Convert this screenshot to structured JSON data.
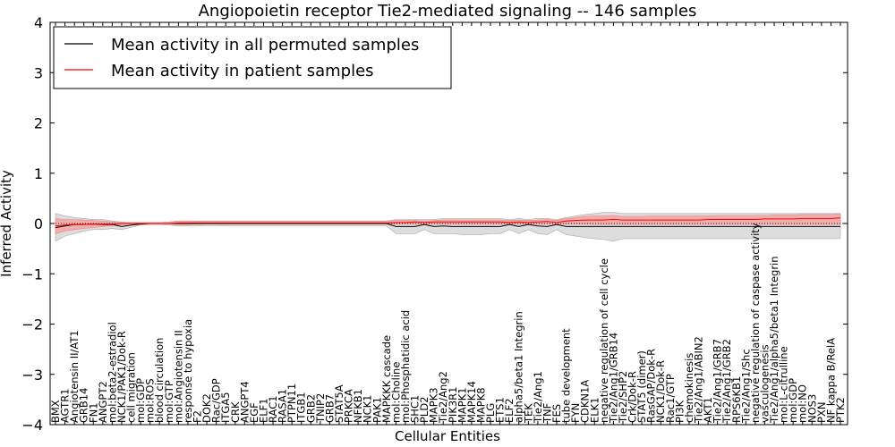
{
  "chart_data": {
    "type": "line",
    "title": "Angiopoietin receptor Tie2-mediated signaling -- 146 samples",
    "xlabel": "Cellular Entities",
    "ylabel": "Inferred Activity",
    "ylim": [
      -4,
      4
    ],
    "yticks": [
      -4,
      -3,
      -2,
      -1,
      0,
      1,
      2,
      3,
      4
    ],
    "grid": false,
    "legend_position": "top-left",
    "colors": {
      "permuted": "#000000",
      "patient": "#ff0000",
      "permuted_band": "#d9d9d9",
      "patient_band": "#f5a3a3",
      "axes": "#000000"
    },
    "categories": [
      "BMX",
      "AGTR1",
      "Angiotensin II/AT1",
      "GRB14",
      "FN1",
      "ANGPT2",
      "mol:beta2-estradiol",
      "NCK1/PAK1/Dok-R",
      "cell migration",
      "mol:GDP",
      "mol:ROS",
      "blood circulation",
      "mol:GTP",
      "mol:Angiotensin II",
      "response to hypoxia",
      "F2",
      "DOK2",
      "Rac/GDP",
      "ITGA5",
      "CRK",
      "ANGPT4",
      "EGF",
      "ELF1",
      "RAC1",
      "RASA1",
      "PTPN11",
      "ITGB1",
      "GRB2",
      "TNIP2",
      "GRB7",
      "STAT5A",
      "PRKCA",
      "NFKB1",
      "NCK1",
      "PAK1",
      "MAPKKK cascade",
      "mol:Choline",
      "mol:Phosphatidic acid",
      "SHC1",
      "PLD2",
      "MAPK3",
      "Tie2/Ang2",
      "PIK3R1",
      "MAPK1",
      "MAPK14",
      "MAPK8",
      "PLG",
      "ETS1",
      "ELF2",
      "alpha5/beta1 Integrin",
      "TEK",
      "Tie2/Ang1",
      "TNF",
      "FES",
      "tube development",
      "FYN",
      "CDKN1A",
      "ELK1",
      "negative regulation of cell cycle",
      "Tie2/Ang1/GRB14",
      "Tie2/SHP2",
      "Crk/Dok-R",
      "STAT5 (dimer)",
      "RasGAP/Dok-R",
      "NCK1/Dok-R",
      "Rac1/GTP",
      "PI3K",
      "chemokinesis",
      "Tie2/Ang1/ABIN2",
      "AKT1",
      "Tie2/Ang1/GRB7",
      "Tie2/Ang1/GRB2",
      "RPS6KB1",
      "Tie2/Ang1/Shc",
      "negative regulation of caspase activity",
      "vasculogenesis",
      "Tie2/Ang1/alpha5/beta1 Integrin",
      "mol:L-citrulline",
      "mol:GDP",
      "mol:NO",
      "NOS3",
      "PXN",
      "NF kappa B/RelA",
      "PTK2"
    ],
    "series": [
      {
        "name": "Mean activity in all permuted samples",
        "values": [
          -0.08,
          -0.05,
          -0.02,
          -0.02,
          -0.01,
          -0.02,
          -0.02,
          -0.06,
          -0.03,
          -0.01,
          0,
          0,
          0,
          0,
          0,
          0,
          0,
          0,
          0,
          0,
          0,
          0,
          0,
          0,
          0,
          0,
          0,
          0,
          0,
          0,
          0,
          0,
          0,
          0,
          0,
          0,
          -0.06,
          -0.06,
          -0.06,
          -0.02,
          -0.06,
          -0.05,
          -0.06,
          -0.06,
          -0.06,
          -0.06,
          -0.06,
          -0.06,
          -0.02,
          -0.06,
          -0.02,
          -0.05,
          -0.06,
          -0.02,
          -0.06,
          -0.06,
          -0.06,
          -0.06,
          -0.06,
          -0.06,
          -0.06,
          -0.06,
          -0.06,
          -0.06,
          -0.06,
          -0.06,
          -0.06,
          -0.06,
          -0.06,
          -0.06,
          -0.06,
          -0.06,
          -0.06,
          -0.06,
          -0.06,
          -0.06,
          -0.06,
          -0.06,
          -0.06,
          -0.06,
          -0.06,
          -0.06,
          -0.06,
          -0.06
        ],
        "band_low": [
          -0.35,
          -0.25,
          -0.2,
          -0.15,
          -0.12,
          -0.12,
          -0.1,
          -0.12,
          -0.08,
          -0.03,
          -0.02,
          -0.02,
          -0.03,
          -0.05,
          -0.05,
          -0.05,
          -0.04,
          -0.04,
          -0.05,
          -0.05,
          -0.05,
          -0.05,
          -0.05,
          -0.05,
          -0.05,
          -0.05,
          -0.05,
          -0.05,
          -0.05,
          -0.05,
          -0.05,
          -0.05,
          -0.05,
          -0.05,
          -0.05,
          -0.05,
          -0.2,
          -0.2,
          -0.2,
          -0.12,
          -0.2,
          -0.2,
          -0.2,
          -0.22,
          -0.22,
          -0.22,
          -0.2,
          -0.2,
          -0.12,
          -0.2,
          -0.12,
          -0.2,
          -0.22,
          -0.12,
          -0.22,
          -0.25,
          -0.28,
          -0.3,
          -0.32,
          -0.35,
          -0.3,
          -0.3,
          -0.3,
          -0.3,
          -0.3,
          -0.3,
          -0.3,
          -0.3,
          -0.3,
          -0.3,
          -0.3,
          -0.3,
          -0.3,
          -0.3,
          -0.3,
          -0.3,
          -0.3,
          -0.3,
          -0.3,
          -0.3,
          -0.3,
          -0.3,
          -0.3,
          -0.3
        ],
        "band_high": [
          0.2,
          0.15,
          0.12,
          0.1,
          0.08,
          0.08,
          0.05,
          0.03,
          0.02,
          0.02,
          0.02,
          0.02,
          0.03,
          0.05,
          0.05,
          0.05,
          0.05,
          0.05,
          0.05,
          0.05,
          0.05,
          0.05,
          0.05,
          0.05,
          0.05,
          0.05,
          0.05,
          0.05,
          0.05,
          0.05,
          0.05,
          0.05,
          0.05,
          0.05,
          0.05,
          0.05,
          0.08,
          0.08,
          0.08,
          0.08,
          0.08,
          0.1,
          0.1,
          0.1,
          0.1,
          0.1,
          0.1,
          0.1,
          0.08,
          0.1,
          0.08,
          0.1,
          0.1,
          0.08,
          0.12,
          0.15,
          0.18,
          0.2,
          0.22,
          0.22,
          0.2,
          0.2,
          0.2,
          0.2,
          0.2,
          0.2,
          0.2,
          0.2,
          0.2,
          0.2,
          0.2,
          0.2,
          0.2,
          0.2,
          0.2,
          0.2,
          0.2,
          0.2,
          0.2,
          0.2,
          0.2,
          0.2,
          0.2,
          0.2
        ]
      },
      {
        "name": "Mean activity in patient samples",
        "values": [
          -0.05,
          -0.03,
          -0.02,
          -0.02,
          -0.01,
          -0.01,
          -0.01,
          0,
          0,
          0,
          0,
          0,
          0,
          0.01,
          0.01,
          0.01,
          0.01,
          0.01,
          0.01,
          0.01,
          0.01,
          0.01,
          0.01,
          0.01,
          0.01,
          0.01,
          0.01,
          0.01,
          0.01,
          0.01,
          0.01,
          0.01,
          0.01,
          0.01,
          0.01,
          0.01,
          0.02,
          0.02,
          0.03,
          0.02,
          0.03,
          0.03,
          0.03,
          0.03,
          0.03,
          0.03,
          0.03,
          0.03,
          0.02,
          0.03,
          0.02,
          0.03,
          0.04,
          0.02,
          0.05,
          0.06,
          0.07,
          0.07,
          0.07,
          0.08,
          0.07,
          0.07,
          0.07,
          0.07,
          0.07,
          0.07,
          0.07,
          0.07,
          0.07,
          0.08,
          0.08,
          0.08,
          0.08,
          0.08,
          0.08,
          0.09,
          0.09,
          0.09,
          0.09,
          0.1,
          0.1,
          0.1,
          0.1,
          0.11
        ],
        "band_low": [
          -0.2,
          -0.15,
          -0.12,
          -0.1,
          -0.08,
          -0.06,
          -0.04,
          -0.02,
          -0.01,
          -0.01,
          -0.01,
          -0.01,
          -0.01,
          -0.02,
          -0.02,
          -0.01,
          -0.01,
          -0.01,
          -0.01,
          -0.01,
          -0.01,
          -0.01,
          -0.01,
          -0.01,
          -0.01,
          -0.01,
          -0.01,
          -0.01,
          -0.01,
          -0.01,
          -0.01,
          -0.01,
          -0.01,
          -0.01,
          -0.01,
          -0.01,
          -0.01,
          -0.01,
          -0.01,
          -0.01,
          -0.01,
          -0.01,
          -0.01,
          -0.01,
          -0.01,
          -0.01,
          -0.01,
          -0.01,
          -0.01,
          -0.01,
          -0.01,
          -0.01,
          -0.01,
          -0.01,
          -0.01,
          -0.01,
          -0.01,
          -0.02,
          -0.02,
          -0.02,
          -0.02,
          -0.02,
          -0.02,
          -0.02,
          -0.02,
          -0.02,
          -0.02,
          -0.02,
          -0.02,
          -0.02,
          -0.02,
          -0.02,
          -0.02,
          -0.02,
          -0.02,
          -0.02,
          -0.02,
          -0.02,
          -0.02,
          -0.02,
          -0.02,
          -0.02,
          -0.02,
          -0.02
        ],
        "band_high": [
          0.1,
          0.08,
          0.08,
          0.07,
          0.06,
          0.05,
          0.03,
          0.02,
          0.02,
          0.02,
          0.02,
          0.02,
          0.03,
          0.05,
          0.05,
          0.04,
          0.04,
          0.04,
          0.04,
          0.04,
          0.04,
          0.04,
          0.04,
          0.04,
          0.04,
          0.04,
          0.04,
          0.04,
          0.04,
          0.04,
          0.04,
          0.04,
          0.04,
          0.04,
          0.04,
          0.04,
          0.06,
          0.06,
          0.06,
          0.05,
          0.06,
          0.07,
          0.07,
          0.07,
          0.07,
          0.07,
          0.07,
          0.07,
          0.06,
          0.07,
          0.06,
          0.07,
          0.08,
          0.06,
          0.1,
          0.12,
          0.14,
          0.15,
          0.15,
          0.16,
          0.14,
          0.14,
          0.14,
          0.15,
          0.15,
          0.15,
          0.15,
          0.15,
          0.15,
          0.15,
          0.16,
          0.16,
          0.16,
          0.16,
          0.16,
          0.16,
          0.17,
          0.17,
          0.17,
          0.18,
          0.18,
          0.18,
          0.18,
          0.19
        ]
      }
    ]
  }
}
